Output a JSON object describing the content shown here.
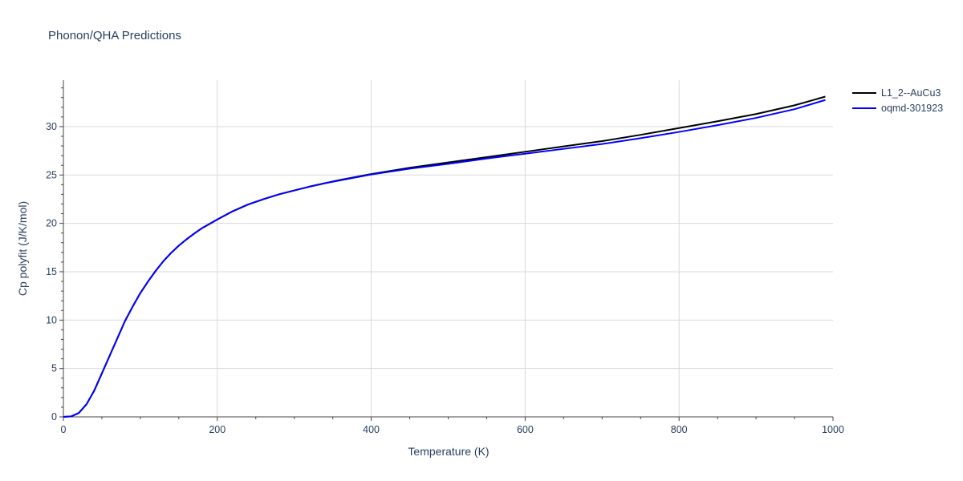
{
  "title": "Phonon/QHA Predictions",
  "chart_data": {
    "type": "line",
    "title": "Phonon/QHA Predictions",
    "xlabel": "Temperature (K)",
    "ylabel": "Cp polyfit (J/K/mol)",
    "xlim": [
      0,
      1000
    ],
    "ylim": [
      0,
      34.8
    ],
    "xticks": [
      0,
      200,
      400,
      600,
      800,
      1000
    ],
    "yticks": [
      0,
      5,
      10,
      15,
      20,
      25,
      30
    ],
    "grid": true,
    "legend_position": "top-right",
    "series": [
      {
        "name": "L1_2--AuCu3",
        "color": "#000000",
        "x": [
          0,
          10,
          20,
          30,
          40,
          50,
          60,
          70,
          80,
          90,
          100,
          110,
          120,
          130,
          140,
          150,
          160,
          170,
          180,
          190,
          200,
          220,
          240,
          260,
          280,
          300,
          320,
          340,
          360,
          380,
          400,
          450,
          500,
          550,
          600,
          650,
          700,
          750,
          800,
          850,
          900,
          950,
          990
        ],
        "y": [
          0,
          0.05,
          0.4,
          1.3,
          2.7,
          4.5,
          6.3,
          8.1,
          9.9,
          11.4,
          12.8,
          14.0,
          15.1,
          16.1,
          16.95,
          17.7,
          18.35,
          18.95,
          19.5,
          19.95,
          20.4,
          21.25,
          21.95,
          22.5,
          23.0,
          23.4,
          23.8,
          24.15,
          24.5,
          24.8,
          25.1,
          25.75,
          26.3,
          26.85,
          27.4,
          27.95,
          28.5,
          29.15,
          29.85,
          30.55,
          31.3,
          32.2,
          33.1
        ]
      },
      {
        "name": "oqmd-301923",
        "color": "#0000ff",
        "x": [
          0,
          10,
          20,
          30,
          40,
          50,
          60,
          70,
          80,
          90,
          100,
          110,
          120,
          130,
          140,
          150,
          160,
          170,
          180,
          190,
          200,
          220,
          240,
          260,
          280,
          300,
          320,
          340,
          360,
          380,
          400,
          450,
          500,
          550,
          600,
          650,
          700,
          750,
          800,
          850,
          900,
          950,
          990
        ],
        "y": [
          0,
          0.05,
          0.4,
          1.3,
          2.7,
          4.5,
          6.3,
          8.1,
          9.9,
          11.4,
          12.8,
          14.0,
          15.1,
          16.1,
          16.95,
          17.7,
          18.35,
          18.95,
          19.5,
          19.95,
          20.4,
          21.25,
          21.95,
          22.5,
          23.0,
          23.4,
          23.8,
          24.15,
          24.45,
          24.75,
          25.05,
          25.65,
          26.15,
          26.7,
          27.2,
          27.7,
          28.2,
          28.8,
          29.45,
          30.15,
          30.9,
          31.8,
          32.75
        ]
      }
    ]
  }
}
